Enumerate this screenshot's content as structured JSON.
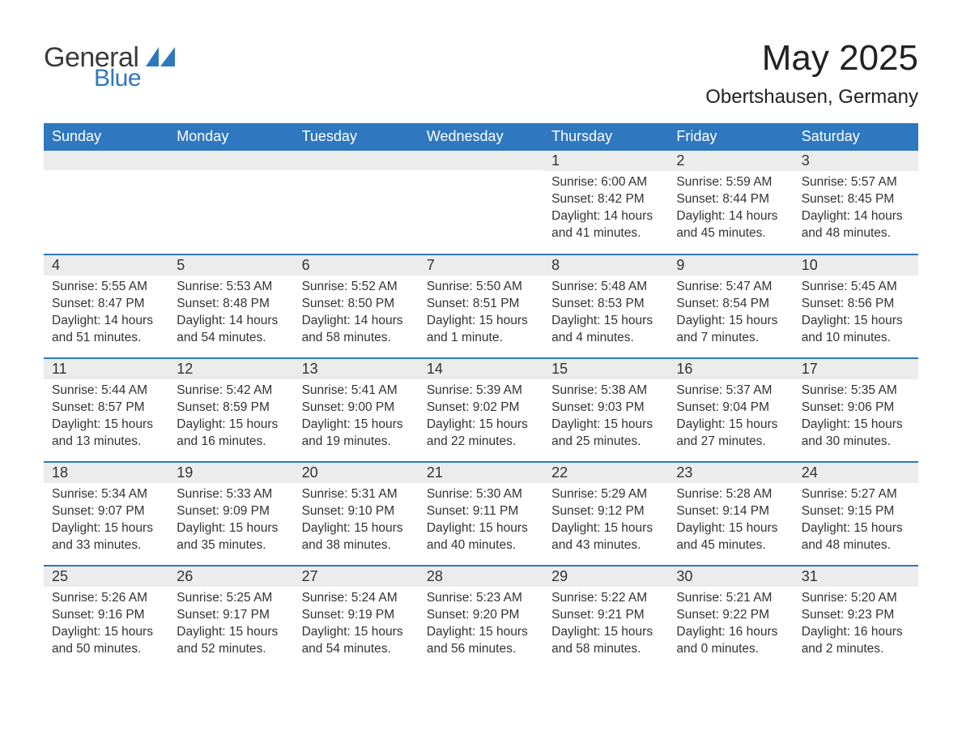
{
  "brand": {
    "part1": "General",
    "part2": "Blue",
    "accent_color": "#2f78bf",
    "text_color": "#3a3a3a"
  },
  "header": {
    "month_title": "May 2025",
    "location": "Obertshausen, Germany",
    "title_fontsize": 44,
    "location_fontsize": 24
  },
  "calendar": {
    "type": "table",
    "background_color": "#ffffff",
    "header_bg": "#2f78bf",
    "header_text_color": "#ffffff",
    "daynum_bg": "#ececec",
    "week_separator_color": "#2f78bf",
    "body_text_color": "#333333",
    "body_fontsize": 15.5,
    "columns": [
      "Sunday",
      "Monday",
      "Tuesday",
      "Wednesday",
      "Thursday",
      "Friday",
      "Saturday"
    ],
    "weeks": [
      [
        null,
        null,
        null,
        null,
        {
          "day": "1",
          "sunrise": "6:00 AM",
          "sunset": "8:42 PM",
          "daylight": "14 hours and 41 minutes."
        },
        {
          "day": "2",
          "sunrise": "5:59 AM",
          "sunset": "8:44 PM",
          "daylight": "14 hours and 45 minutes."
        },
        {
          "day": "3",
          "sunrise": "5:57 AM",
          "sunset": "8:45 PM",
          "daylight": "14 hours and 48 minutes."
        }
      ],
      [
        {
          "day": "4",
          "sunrise": "5:55 AM",
          "sunset": "8:47 PM",
          "daylight": "14 hours and 51 minutes."
        },
        {
          "day": "5",
          "sunrise": "5:53 AM",
          "sunset": "8:48 PM",
          "daylight": "14 hours and 54 minutes."
        },
        {
          "day": "6",
          "sunrise": "5:52 AM",
          "sunset": "8:50 PM",
          "daylight": "14 hours and 58 minutes."
        },
        {
          "day": "7",
          "sunrise": "5:50 AM",
          "sunset": "8:51 PM",
          "daylight": "15 hours and 1 minute."
        },
        {
          "day": "8",
          "sunrise": "5:48 AM",
          "sunset": "8:53 PM",
          "daylight": "15 hours and 4 minutes."
        },
        {
          "day": "9",
          "sunrise": "5:47 AM",
          "sunset": "8:54 PM",
          "daylight": "15 hours and 7 minutes."
        },
        {
          "day": "10",
          "sunrise": "5:45 AM",
          "sunset": "8:56 PM",
          "daylight": "15 hours and 10 minutes."
        }
      ],
      [
        {
          "day": "11",
          "sunrise": "5:44 AM",
          "sunset": "8:57 PM",
          "daylight": "15 hours and 13 minutes."
        },
        {
          "day": "12",
          "sunrise": "5:42 AM",
          "sunset": "8:59 PM",
          "daylight": "15 hours and 16 minutes."
        },
        {
          "day": "13",
          "sunrise": "5:41 AM",
          "sunset": "9:00 PM",
          "daylight": "15 hours and 19 minutes."
        },
        {
          "day": "14",
          "sunrise": "5:39 AM",
          "sunset": "9:02 PM",
          "daylight": "15 hours and 22 minutes."
        },
        {
          "day": "15",
          "sunrise": "5:38 AM",
          "sunset": "9:03 PM",
          "daylight": "15 hours and 25 minutes."
        },
        {
          "day": "16",
          "sunrise": "5:37 AM",
          "sunset": "9:04 PM",
          "daylight": "15 hours and 27 minutes."
        },
        {
          "day": "17",
          "sunrise": "5:35 AM",
          "sunset": "9:06 PM",
          "daylight": "15 hours and 30 minutes."
        }
      ],
      [
        {
          "day": "18",
          "sunrise": "5:34 AM",
          "sunset": "9:07 PM",
          "daylight": "15 hours and 33 minutes."
        },
        {
          "day": "19",
          "sunrise": "5:33 AM",
          "sunset": "9:09 PM",
          "daylight": "15 hours and 35 minutes."
        },
        {
          "day": "20",
          "sunrise": "5:31 AM",
          "sunset": "9:10 PM",
          "daylight": "15 hours and 38 minutes."
        },
        {
          "day": "21",
          "sunrise": "5:30 AM",
          "sunset": "9:11 PM",
          "daylight": "15 hours and 40 minutes."
        },
        {
          "day": "22",
          "sunrise": "5:29 AM",
          "sunset": "9:12 PM",
          "daylight": "15 hours and 43 minutes."
        },
        {
          "day": "23",
          "sunrise": "5:28 AM",
          "sunset": "9:14 PM",
          "daylight": "15 hours and 45 minutes."
        },
        {
          "day": "24",
          "sunrise": "5:27 AM",
          "sunset": "9:15 PM",
          "daylight": "15 hours and 48 minutes."
        }
      ],
      [
        {
          "day": "25",
          "sunrise": "5:26 AM",
          "sunset": "9:16 PM",
          "daylight": "15 hours and 50 minutes."
        },
        {
          "day": "26",
          "sunrise": "5:25 AM",
          "sunset": "9:17 PM",
          "daylight": "15 hours and 52 minutes."
        },
        {
          "day": "27",
          "sunrise": "5:24 AM",
          "sunset": "9:19 PM",
          "daylight": "15 hours and 54 minutes."
        },
        {
          "day": "28",
          "sunrise": "5:23 AM",
          "sunset": "9:20 PM",
          "daylight": "15 hours and 56 minutes."
        },
        {
          "day": "29",
          "sunrise": "5:22 AM",
          "sunset": "9:21 PM",
          "daylight": "15 hours and 58 minutes."
        },
        {
          "day": "30",
          "sunrise": "5:21 AM",
          "sunset": "9:22 PM",
          "daylight": "16 hours and 0 minutes."
        },
        {
          "day": "31",
          "sunrise": "5:20 AM",
          "sunset": "9:23 PM",
          "daylight": "16 hours and 2 minutes."
        }
      ]
    ],
    "labels": {
      "sunrise_prefix": "Sunrise: ",
      "sunset_prefix": "Sunset: ",
      "daylight_prefix": "Daylight: "
    }
  }
}
